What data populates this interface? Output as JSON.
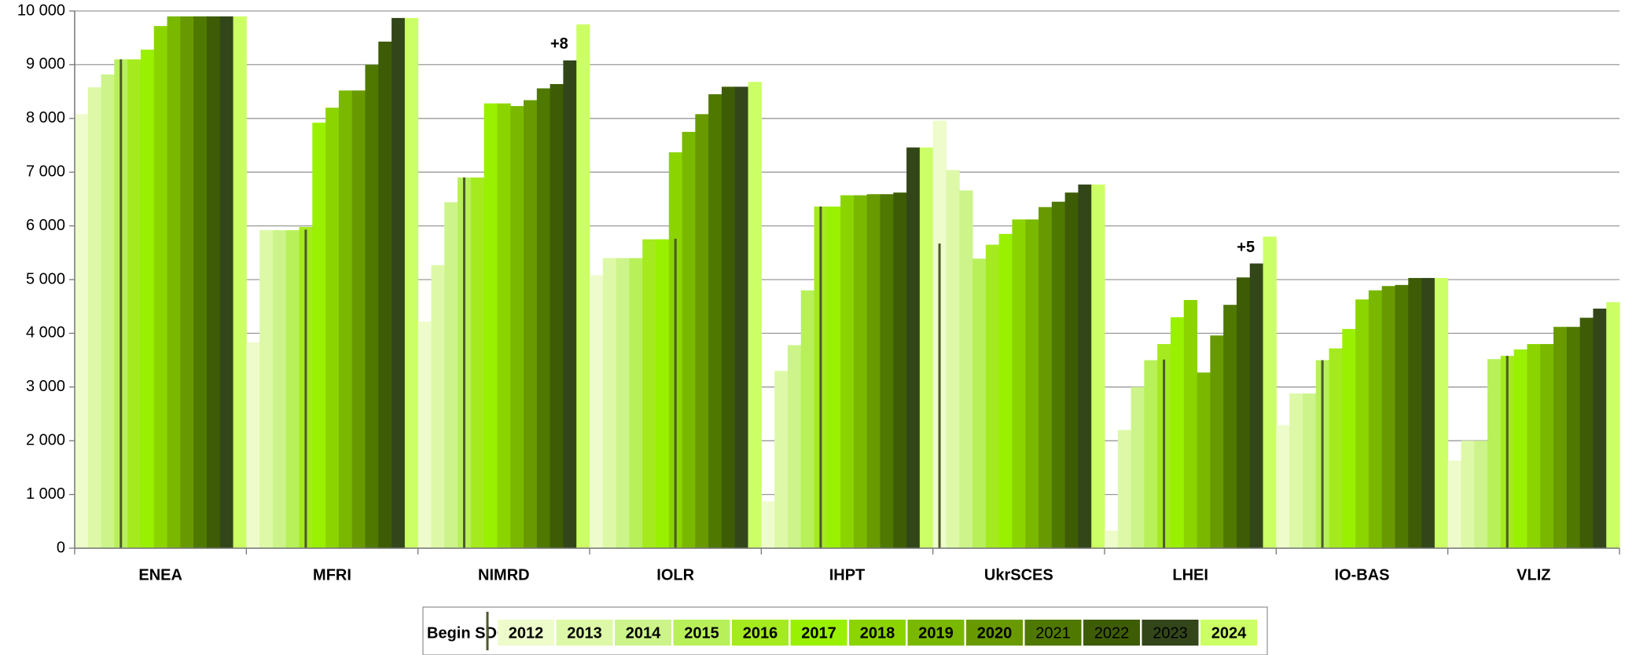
{
  "chart_data": {
    "type": "bar",
    "categories": [
      "ENEA",
      "MFRI",
      "NIMRD",
      "IOLR",
      "IHPT",
      "UkrSCES",
      "LHEI",
      "IO-BAS",
      "VLIZ"
    ],
    "ylim": [
      0,
      10000
    ],
    "yticks": [
      {
        "value": 0,
        "label": "0"
      },
      {
        "value": 1000,
        "label": "1 000"
      },
      {
        "value": 2000,
        "label": "2 000"
      },
      {
        "value": 3000,
        "label": "3 000"
      },
      {
        "value": 4000,
        "label": "4 000"
      },
      {
        "value": 5000,
        "label": "5 000"
      },
      {
        "value": 6000,
        "label": "6 000"
      },
      {
        "value": 7000,
        "label": "7 000"
      },
      {
        "value": 8000,
        "label": "8 000"
      },
      {
        "value": 9000,
        "label": "9 000"
      },
      {
        "value": 10000,
        "label": "10 000"
      }
    ],
    "grid": true,
    "legend": "bottom",
    "begin_sdc": {
      "name": "Begin SDC",
      "color": "#4a5a2a",
      "values": [
        9100,
        5930,
        6900,
        5760,
        6360,
        5670,
        3510,
        3500,
        3580
      ]
    },
    "series": [
      {
        "name": "2012",
        "color": "#eefccb",
        "text_color": "#000000",
        "values": [
          8080,
          3830,
          4220,
          5080,
          870,
          7960,
          330,
          2290,
          1630
        ]
      },
      {
        "name": "2013",
        "color": "#ddf9a8",
        "text_color": "#000000",
        "values": [
          8580,
          5920,
          5270,
          5400,
          3300,
          7040,
          2200,
          2880,
          2000
        ]
      },
      {
        "name": "2014",
        "color": "#ccf48a",
        "text_color": "#000000",
        "values": [
          8820,
          5920,
          6440,
          5400,
          3780,
          6660,
          3000,
          2880,
          2000
        ]
      },
      {
        "name": "2015",
        "color": "#b8f05a",
        "text_color": "#000000",
        "values": [
          9100,
          5920,
          6900,
          5400,
          4800,
          5390,
          3500,
          3500,
          3520
        ]
      },
      {
        "name": "2016",
        "color": "#a5ea1e",
        "text_color": "#000000",
        "values": [
          9100,
          5980,
          6900,
          5750,
          6360,
          5650,
          3800,
          3720,
          3580
        ]
      },
      {
        "name": "2017",
        "color": "#99f000",
        "text_color": "#ffffff",
        "values": [
          9280,
          7920,
          8280,
          5750,
          6360,
          5850,
          4300,
          4080,
          3700
        ]
      },
      {
        "name": "2018",
        "color": "#8cd400",
        "text_color": "#ffffff",
        "values": [
          9720,
          8200,
          8280,
          7370,
          6570,
          6120,
          4620,
          4630,
          3800
        ]
      },
      {
        "name": "2019",
        "color": "#7ab800",
        "text_color": "#ffffff",
        "values": [
          9900,
          8520,
          8230,
          7750,
          6570,
          6120,
          3270,
          4800,
          3800
        ]
      },
      {
        "name": "2020",
        "color": "#689a00",
        "text_color": "#ffffff",
        "values": [
          9900,
          8520,
          8340,
          8080,
          6590,
          6350,
          3960,
          4880,
          4120
        ]
      },
      {
        "name": "2021",
        "color": "#4f7800",
        "text_color": "#ffffff",
        "values": [
          9900,
          9000,
          8560,
          8450,
          6590,
          6450,
          4530,
          4900,
          4120
        ]
      },
      {
        "name": "2022",
        "color": "#3e5c05",
        "text_color": "#ffffff",
        "values": [
          9900,
          9430,
          8640,
          8590,
          6620,
          6620,
          5040,
          5030,
          4290
        ]
      },
      {
        "name": "2023",
        "color": "#33461a",
        "text_color": "#ffffff",
        "values": [
          9900,
          9870,
          9080,
          8590,
          7460,
          6770,
          5300,
          5030,
          4460
        ]
      },
      {
        "name": "2024",
        "color": "#ccff66",
        "text_color": "#000000",
        "values": [
          9900,
          9870,
          9750,
          8680,
          7460,
          6770,
          5800,
          5030,
          4580
        ]
      }
    ],
    "annotations": [
      {
        "text": "+8",
        "category": "NIMRD"
      },
      {
        "text": "+5",
        "category": "LHEI"
      }
    ]
  }
}
